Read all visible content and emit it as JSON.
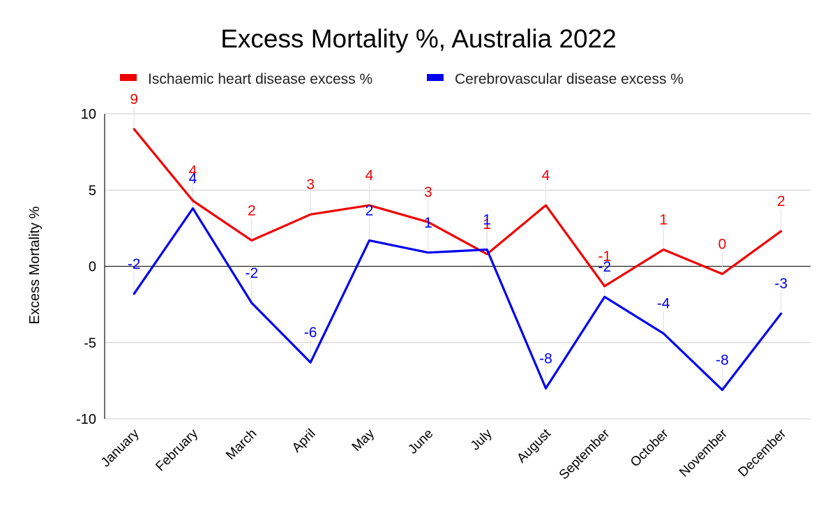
{
  "chart_data": {
    "type": "line",
    "title": "Excess Mortality %, Australia 2022",
    "xlabel": "",
    "ylabel": "Excess Mortality %",
    "ylim": [
      -10,
      10
    ],
    "yticks": [
      10,
      5,
      0,
      -5,
      -10
    ],
    "ytick_labels": [
      "10",
      "5",
      "0",
      "-5",
      "-10"
    ],
    "grid": true,
    "legend_position": "top",
    "categories": [
      "January",
      "February",
      "March",
      "April",
      "May",
      "June",
      "July",
      "August",
      "September",
      "October",
      "November",
      "December"
    ],
    "series": [
      {
        "name": "Ischaemic heart disease excess %",
        "color": "#ee0000",
        "values": [
          9.0,
          4.3,
          1.7,
          3.4,
          4.0,
          2.9,
          0.8,
          4.0,
          -1.3,
          1.1,
          -0.5,
          2.3
        ],
        "data_labels": [
          "9",
          "4",
          "2",
          "3",
          "4",
          "3",
          "1",
          "4",
          "-1",
          "1",
          "0",
          "2"
        ]
      },
      {
        "name": "Cerebrovascular disease excess %",
        "color": "#0000ee",
        "values": [
          -1.8,
          3.8,
          -2.4,
          -6.3,
          1.7,
          0.9,
          1.1,
          -8.0,
          -2.0,
          -4.4,
          -8.1,
          -3.1
        ],
        "data_labels": [
          "-2",
          "4",
          "-2",
          "-6",
          "2",
          "1",
          "1",
          "-8",
          "-2",
          "-4",
          "-8",
          "-3"
        ]
      }
    ]
  }
}
